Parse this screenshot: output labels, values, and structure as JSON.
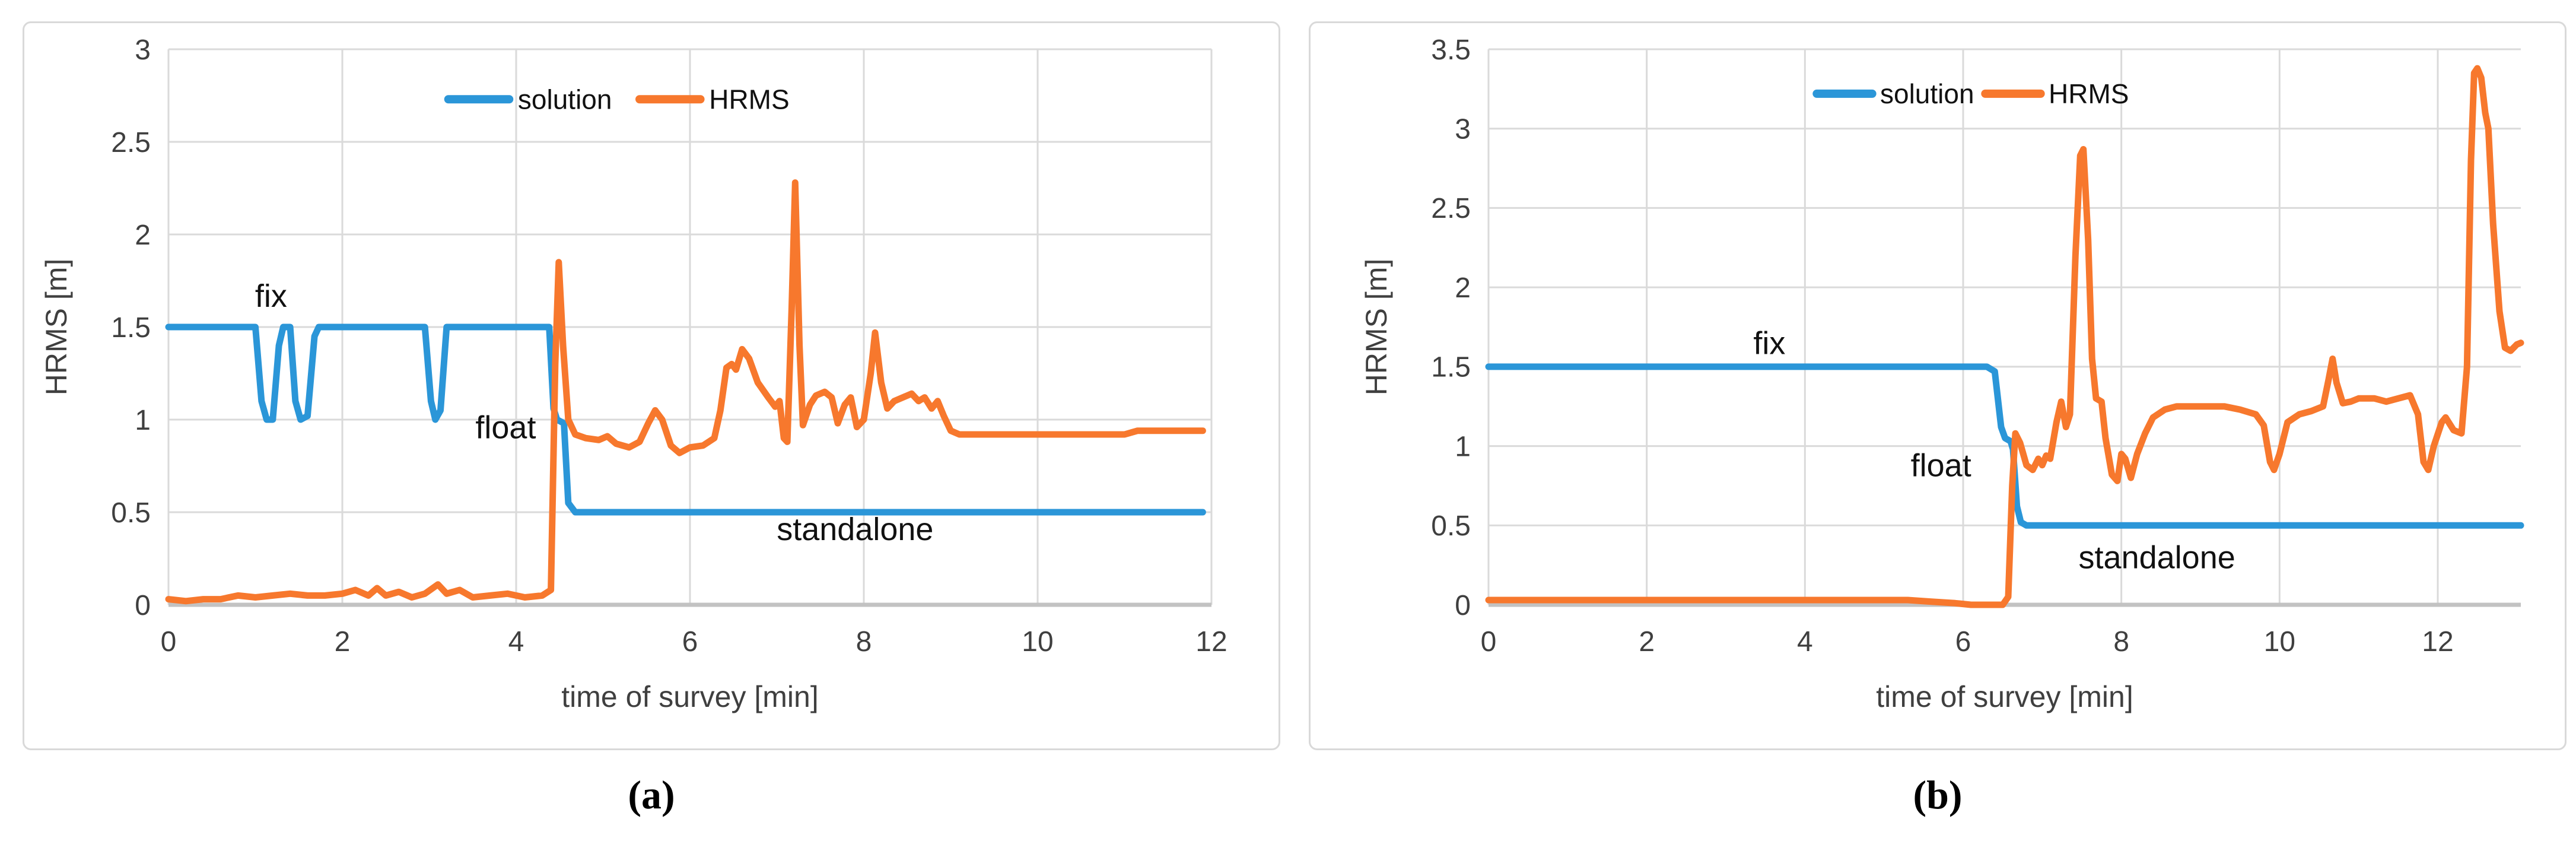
{
  "colors": {
    "solution_blue": "#2b96d8",
    "hrms_orange": "#f7782d",
    "gridline": "#dadada",
    "axis_line": "#c2c2c2",
    "tick_text": "#3f3f3f",
    "annotation_text": "#111111",
    "panel_border": "#d9d9d9",
    "background": "#ffffff"
  },
  "chart_data": [
    {
      "type": "line",
      "caption": "(a)",
      "xlabel": "time of survey [min]",
      "ylabel": "HRMS [m]",
      "xlim": [
        0,
        12
      ],
      "ylim": [
        0,
        3
      ],
      "x_ticks": [
        0,
        2,
        4,
        6,
        8,
        10,
        12
      ],
      "y_ticks": [
        0,
        0.5,
        1,
        1.5,
        2,
        2.5,
        3
      ],
      "grid": true,
      "legend_position": "top-center-inside",
      "legend_y": 2.73,
      "annotations": [
        {
          "text": "fix",
          "x": 1.18,
          "y": 1.67
        },
        {
          "text": "float",
          "x": 3.88,
          "y": 0.96
        },
        {
          "text": "standalone",
          "x": 7.9,
          "y": 0.41
        }
      ],
      "series": [
        {
          "name": "solution",
          "color": "#2b96d8",
          "legend_line_x": [
            3.22,
            3.92
          ],
          "legend_text_x": 4.02,
          "points": [
            [
              0,
              1.5
            ],
            [
              1.0,
              1.5
            ],
            [
              1.07,
              1.1
            ],
            [
              1.13,
              1.0
            ],
            [
              1.2,
              1.0
            ],
            [
              1.27,
              1.4
            ],
            [
              1.32,
              1.5
            ],
            [
              1.4,
              1.5
            ],
            [
              1.46,
              1.1
            ],
            [
              1.52,
              1.0
            ],
            [
              1.6,
              1.02
            ],
            [
              1.68,
              1.45
            ],
            [
              1.73,
              1.5
            ],
            [
              2.95,
              1.5
            ],
            [
              3.02,
              1.1
            ],
            [
              3.07,
              1.0
            ],
            [
              3.13,
              1.05
            ],
            [
              3.2,
              1.5
            ],
            [
              4.38,
              1.5
            ],
            [
              4.43,
              1.06
            ],
            [
              4.47,
              1.0
            ],
            [
              4.55,
              0.98
            ],
            [
              4.6,
              0.55
            ],
            [
              4.68,
              0.5
            ],
            [
              11.9,
              0.5
            ]
          ]
        },
        {
          "name": "HRMS",
          "color": "#f7782d",
          "legend_line_x": [
            5.42,
            6.12
          ],
          "legend_text_x": 6.22,
          "points": [
            [
              0,
              0.03
            ],
            [
              0.2,
              0.02
            ],
            [
              0.4,
              0.03
            ],
            [
              0.6,
              0.03
            ],
            [
              0.8,
              0.05
            ],
            [
              1.0,
              0.04
            ],
            [
              1.2,
              0.05
            ],
            [
              1.4,
              0.06
            ],
            [
              1.6,
              0.05
            ],
            [
              1.8,
              0.05
            ],
            [
              2.0,
              0.06
            ],
            [
              2.15,
              0.08
            ],
            [
              2.3,
              0.05
            ],
            [
              2.4,
              0.09
            ],
            [
              2.5,
              0.05
            ],
            [
              2.65,
              0.07
            ],
            [
              2.8,
              0.04
            ],
            [
              2.95,
              0.06
            ],
            [
              3.1,
              0.11
            ],
            [
              3.2,
              0.06
            ],
            [
              3.35,
              0.08
            ],
            [
              3.5,
              0.04
            ],
            [
              3.7,
              0.05
            ],
            [
              3.9,
              0.06
            ],
            [
              4.1,
              0.04
            ],
            [
              4.3,
              0.05
            ],
            [
              4.4,
              0.08
            ],
            [
              4.45,
              1.3
            ],
            [
              4.49,
              1.85
            ],
            [
              4.54,
              1.4
            ],
            [
              4.6,
              1.0
            ],
            [
              4.68,
              0.92
            ],
            [
              4.8,
              0.9
            ],
            [
              4.95,
              0.89
            ],
            [
              5.05,
              0.91
            ],
            [
              5.15,
              0.87
            ],
            [
              5.3,
              0.85
            ],
            [
              5.42,
              0.88
            ],
            [
              5.52,
              0.98
            ],
            [
              5.6,
              1.05
            ],
            [
              5.68,
              1.0
            ],
            [
              5.78,
              0.86
            ],
            [
              5.88,
              0.82
            ],
            [
              6.0,
              0.85
            ],
            [
              6.15,
              0.86
            ],
            [
              6.28,
              0.9
            ],
            [
              6.35,
              1.05
            ],
            [
              6.42,
              1.28
            ],
            [
              6.48,
              1.3
            ],
            [
              6.53,
              1.27
            ],
            [
              6.6,
              1.38
            ],
            [
              6.68,
              1.33
            ],
            [
              6.78,
              1.2
            ],
            [
              6.9,
              1.12
            ],
            [
              6.98,
              1.07
            ],
            [
              7.03,
              1.1
            ],
            [
              7.08,
              0.9
            ],
            [
              7.12,
              0.88
            ],
            [
              7.17,
              1.6
            ],
            [
              7.21,
              2.28
            ],
            [
              7.26,
              1.4
            ],
            [
              7.3,
              0.97
            ],
            [
              7.38,
              1.08
            ],
            [
              7.45,
              1.13
            ],
            [
              7.55,
              1.15
            ],
            [
              7.63,
              1.12
            ],
            [
              7.7,
              0.98
            ],
            [
              7.78,
              1.08
            ],
            [
              7.85,
              1.12
            ],
            [
              7.92,
              0.96
            ],
            [
              8.0,
              1.0
            ],
            [
              8.08,
              1.25
            ],
            [
              8.13,
              1.47
            ],
            [
              8.2,
              1.2
            ],
            [
              8.27,
              1.06
            ],
            [
              8.35,
              1.1
            ],
            [
              8.45,
              1.12
            ],
            [
              8.55,
              1.14
            ],
            [
              8.63,
              1.1
            ],
            [
              8.7,
              1.12
            ],
            [
              8.78,
              1.06
            ],
            [
              8.85,
              1.1
            ],
            [
              8.92,
              1.02
            ],
            [
              9.0,
              0.94
            ],
            [
              9.1,
              0.92
            ],
            [
              9.5,
              0.92
            ],
            [
              10.0,
              0.92
            ],
            [
              10.5,
              0.92
            ],
            [
              11.0,
              0.92
            ],
            [
              11.15,
              0.94
            ],
            [
              11.5,
              0.94
            ],
            [
              11.9,
              0.94
            ]
          ]
        }
      ]
    },
    {
      "type": "line",
      "caption": "(b)",
      "xlabel": "time of survey [min]",
      "ylabel": "HRMS [m]",
      "xlim": [
        0,
        13.05
      ],
      "ylim": [
        0,
        3.5
      ],
      "x_ticks": [
        0,
        2,
        4,
        6,
        8,
        10,
        12
      ],
      "y_ticks": [
        0,
        0.5,
        1,
        1.5,
        2,
        2.5,
        3,
        3.5
      ],
      "grid": true,
      "legend_position": "top-center-inside",
      "legend_y": 3.22,
      "annotations": [
        {
          "text": "fix",
          "x": 3.55,
          "y": 1.65
        },
        {
          "text": "float",
          "x": 5.72,
          "y": 0.88
        },
        {
          "text": "standalone",
          "x": 8.45,
          "y": 0.3
        }
      ],
      "series": [
        {
          "name": "solution",
          "color": "#2b96d8",
          "legend_line_x": [
            4.15,
            4.85
          ],
          "legend_text_x": 4.95,
          "points": [
            [
              0,
              1.5
            ],
            [
              6.3,
              1.5
            ],
            [
              6.4,
              1.47
            ],
            [
              6.48,
              1.12
            ],
            [
              6.53,
              1.05
            ],
            [
              6.6,
              1.03
            ],
            [
              6.63,
              0.98
            ],
            [
              6.68,
              0.62
            ],
            [
              6.73,
              0.52
            ],
            [
              6.8,
              0.5
            ],
            [
              13.05,
              0.5
            ]
          ]
        },
        {
          "name": "HRMS",
          "color": "#f7782d",
          "legend_line_x": [
            6.28,
            6.98
          ],
          "legend_text_x": 7.08,
          "points": [
            [
              0,
              0.03
            ],
            [
              0.5,
              0.03
            ],
            [
              1.0,
              0.03
            ],
            [
              1.5,
              0.03
            ],
            [
              2.0,
              0.03
            ],
            [
              2.5,
              0.03
            ],
            [
              3.0,
              0.03
            ],
            [
              3.5,
              0.03
            ],
            [
              4.0,
              0.03
            ],
            [
              4.5,
              0.03
            ],
            [
              5.0,
              0.03
            ],
            [
              5.3,
              0.03
            ],
            [
              5.6,
              0.02
            ],
            [
              5.9,
              0.01
            ],
            [
              6.1,
              0.0
            ],
            [
              6.3,
              0.0
            ],
            [
              6.5,
              0.0
            ],
            [
              6.57,
              0.05
            ],
            [
              6.62,
              0.75
            ],
            [
              6.66,
              1.08
            ],
            [
              6.72,
              1.02
            ],
            [
              6.8,
              0.88
            ],
            [
              6.88,
              0.85
            ],
            [
              6.95,
              0.92
            ],
            [
              7.0,
              0.88
            ],
            [
              7.05,
              0.94
            ],
            [
              7.1,
              0.92
            ],
            [
              7.18,
              1.15
            ],
            [
              7.24,
              1.28
            ],
            [
              7.3,
              1.12
            ],
            [
              7.35,
              1.2
            ],
            [
              7.42,
              2.2
            ],
            [
              7.48,
              2.83
            ],
            [
              7.52,
              2.87
            ],
            [
              7.58,
              2.3
            ],
            [
              7.63,
              1.55
            ],
            [
              7.68,
              1.3
            ],
            [
              7.75,
              1.28
            ],
            [
              7.8,
              1.05
            ],
            [
              7.88,
              0.82
            ],
            [
              7.95,
              0.78
            ],
            [
              8.0,
              0.95
            ],
            [
              8.05,
              0.92
            ],
            [
              8.12,
              0.8
            ],
            [
              8.2,
              0.95
            ],
            [
              8.3,
              1.08
            ],
            [
              8.4,
              1.18
            ],
            [
              8.55,
              1.23
            ],
            [
              8.7,
              1.25
            ],
            [
              9.0,
              1.25
            ],
            [
              9.3,
              1.25
            ],
            [
              9.5,
              1.23
            ],
            [
              9.7,
              1.2
            ],
            [
              9.8,
              1.13
            ],
            [
              9.88,
              0.9
            ],
            [
              9.93,
              0.85
            ],
            [
              10.0,
              0.95
            ],
            [
              10.1,
              1.15
            ],
            [
              10.25,
              1.2
            ],
            [
              10.4,
              1.22
            ],
            [
              10.55,
              1.25
            ],
            [
              10.62,
              1.42
            ],
            [
              10.67,
              1.55
            ],
            [
              10.72,
              1.4
            ],
            [
              10.8,
              1.27
            ],
            [
              10.9,
              1.28
            ],
            [
              11.0,
              1.3
            ],
            [
              11.2,
              1.3
            ],
            [
              11.35,
              1.28
            ],
            [
              11.5,
              1.3
            ],
            [
              11.65,
              1.32
            ],
            [
              11.75,
              1.2
            ],
            [
              11.82,
              0.9
            ],
            [
              11.88,
              0.85
            ],
            [
              11.95,
              1.0
            ],
            [
              12.05,
              1.15
            ],
            [
              12.1,
              1.18
            ],
            [
              12.2,
              1.1
            ],
            [
              12.3,
              1.08
            ],
            [
              12.37,
              1.5
            ],
            [
              12.42,
              2.8
            ],
            [
              12.46,
              3.35
            ],
            [
              12.5,
              3.38
            ],
            [
              12.55,
              3.32
            ],
            [
              12.6,
              3.1
            ],
            [
              12.64,
              3.0
            ],
            [
              12.7,
              2.4
            ],
            [
              12.78,
              1.85
            ],
            [
              12.85,
              1.62
            ],
            [
              12.92,
              1.6
            ],
            [
              13.0,
              1.64
            ],
            [
              13.05,
              1.65
            ]
          ]
        }
      ]
    }
  ]
}
